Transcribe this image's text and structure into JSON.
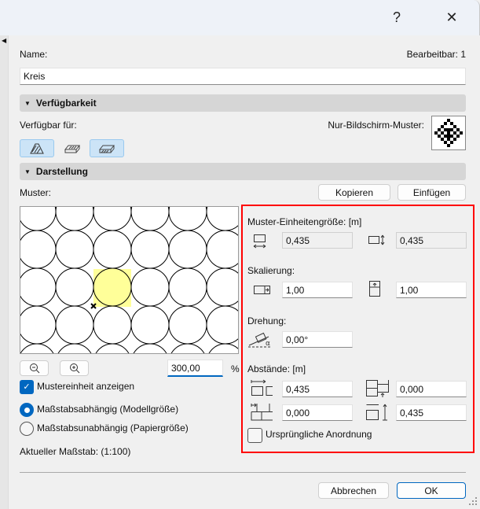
{
  "titlebar": {
    "help": "?",
    "close": "✕"
  },
  "name": {
    "label": "Name:",
    "editable": "Bearbeitbar: 1",
    "value": "Kreis"
  },
  "availability": {
    "header": "Verfügbarkeit",
    "available_for": "Verfügbar für:",
    "screen_pattern": "Nur-Bildschirm-Muster:",
    "buttons": [
      {
        "icon": "fill-icon",
        "active": true
      },
      {
        "icon": "cover-fill-icon",
        "active": false
      },
      {
        "icon": "cut-fill-icon",
        "active": true
      }
    ]
  },
  "display": {
    "header": "Darstellung",
    "pattern_label": "Muster:",
    "copy": "Kopieren",
    "paste": "Einfügen"
  },
  "preview": {
    "zoom_value": "300,00",
    "zoom_unit": "%",
    "highlight_color": "#ffff99"
  },
  "options": {
    "show_unit": "Mustereinheit anzeigen",
    "show_unit_checked": true,
    "scale_dependent": "Maßstabsabhängig (Modellgröße)",
    "scale_independent": "Maßstabsunabhängig (Papiergröße)",
    "selected": "scale_dependent",
    "current_scale": "Aktueller Maßstab: (1:100)"
  },
  "params": {
    "unit_size_label": "Muster-Einheitengröße: [m]",
    "unit_width": "0,435",
    "unit_height": "0,435",
    "scaling_label": "Skalierung:",
    "scale_x": "1,00",
    "scale_y": "1,00",
    "rotation_label": "Drehung:",
    "rotation": "0,00°",
    "spacing_label": "Abstände: [m]",
    "spacing_x": "0,435",
    "offset_y": "0,000",
    "offset_x": "0,000",
    "spacing_y": "0,435",
    "original_layout": "Ursprüngliche Anordnung",
    "original_layout_checked": false
  },
  "footer": {
    "cancel": "Abbrechen",
    "ok": "OK"
  },
  "colors": {
    "accent": "#0067c0",
    "highlight_box": "#ff0000"
  }
}
